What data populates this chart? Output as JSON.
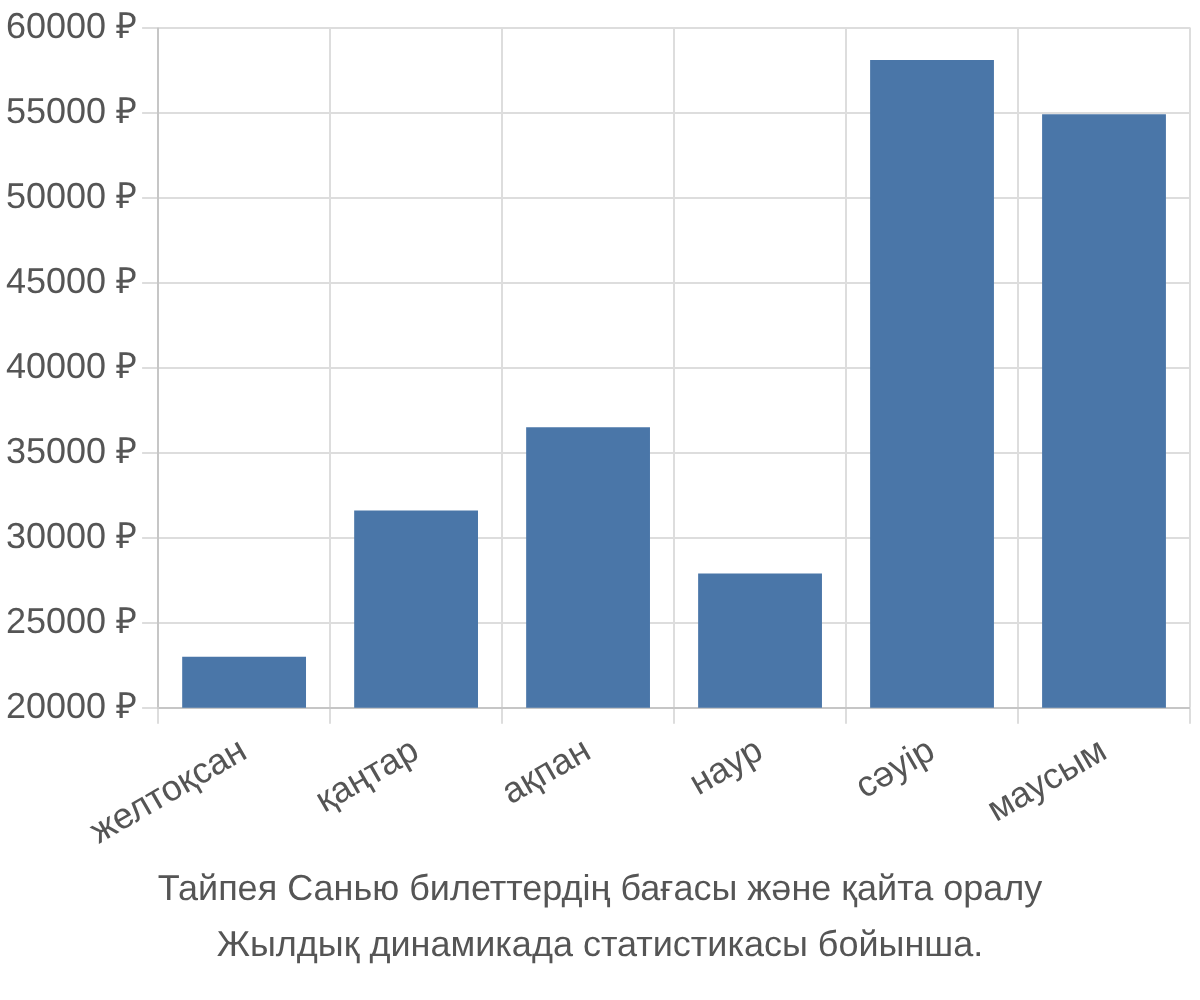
{
  "chart_data": {
    "type": "bar",
    "title": "Тайпея Санью билеттердің бағасы және қайта оралу",
    "subtitle": "Жылдық динамикада статистикасы бойынша.",
    "categories": [
      "желтоқсан",
      "қаңтар",
      "ақпан",
      "наур",
      "сәуір",
      "маусым"
    ],
    "values": [
      23000,
      31600,
      36500,
      27900,
      58100,
      54900
    ],
    "color": "#4a76a8",
    "ylim": [
      20000,
      60000
    ],
    "yticks": [
      {
        "value": 20000,
        "label": "20000 ₽"
      },
      {
        "value": 25000,
        "label": "25000 ₽"
      },
      {
        "value": 30000,
        "label": "30000 ₽"
      },
      {
        "value": 35000,
        "label": "35000 ₽"
      },
      {
        "value": 40000,
        "label": "40000 ₽"
      },
      {
        "value": 45000,
        "label": "45000 ₽"
      },
      {
        "value": 50000,
        "label": "50000 ₽"
      },
      {
        "value": 55000,
        "label": "55000 ₽"
      },
      {
        "value": 60000,
        "label": "60000 ₽"
      }
    ],
    "grid": true
  }
}
